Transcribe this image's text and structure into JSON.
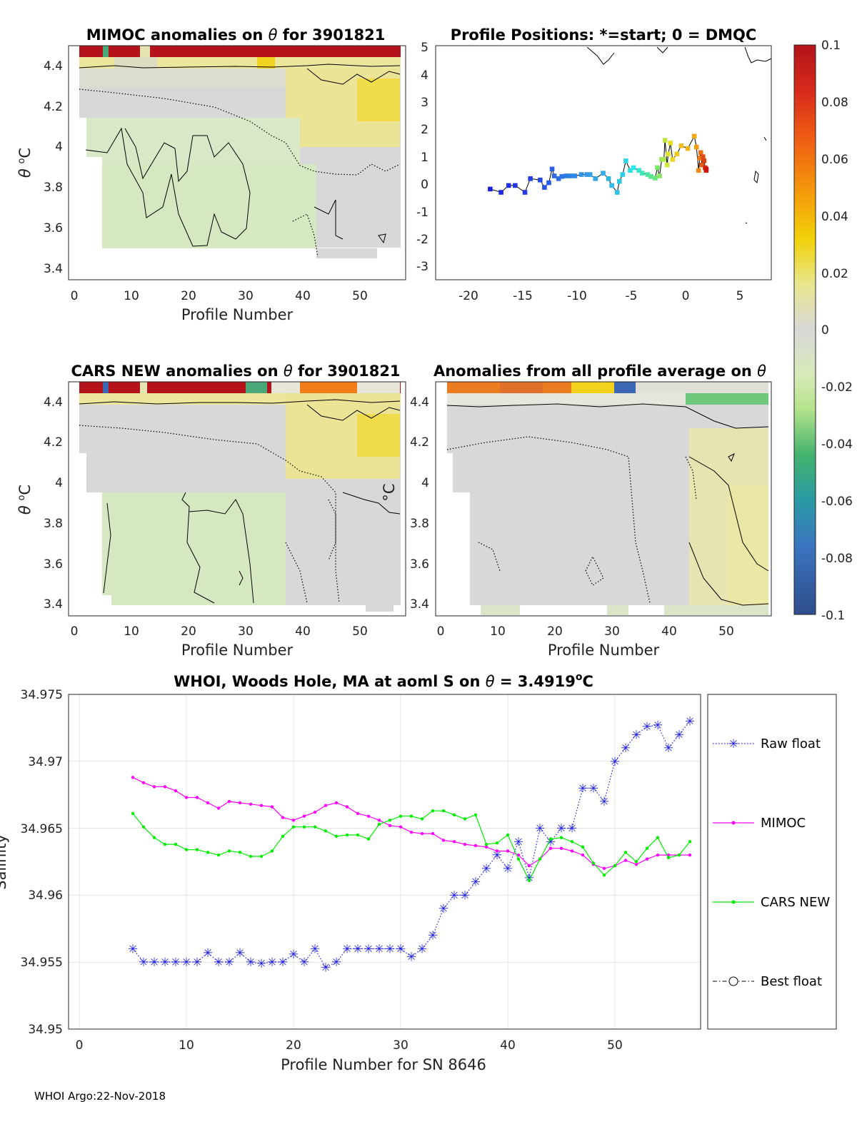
{
  "footer": "WHOI Argo:22-Nov-2018",
  "colorbar": {
    "ticks": [
      "0.1",
      "0.08",
      "0.06",
      "0.04",
      "0.02",
      "0",
      "-0.02",
      "-0.04",
      "-0.06",
      "-0.08",
      "-0.1"
    ],
    "range": [
      -0.1,
      0.1
    ]
  },
  "chart_data": [
    {
      "type": "heatmap",
      "title_parts": [
        "MIMOC anomalies on ",
        "θ",
        "  for 3901821"
      ],
      "xlabel": "Profile Number",
      "ylabel_parts": [
        "θ",
        " ",
        "o",
        "C"
      ],
      "xticks": [
        "0",
        "10",
        "20",
        "30",
        "40",
        "50"
      ],
      "yticks": [
        "3.4",
        "3.6",
        "3.8",
        "4",
        "4.2",
        "4.4"
      ],
      "xlim": [
        -1,
        58
      ],
      "ylim": [
        3.35,
        4.48
      ]
    },
    {
      "type": "scatter",
      "title": "Profile Positions: *=start; 0 = DMQC",
      "xticks": [
        "-20",
        "-15",
        "-10",
        "-5",
        "0",
        "5"
      ],
      "yticks": [
        "5",
        "4",
        "3",
        "2",
        "1",
        "0",
        "-1",
        "-2",
        "-3"
      ],
      "xlim": [
        -23,
        8
      ],
      "ylim": [
        -3.4,
        5.1
      ],
      "track_x": [
        -18,
        -17,
        -16.3,
        -15.7,
        -14.8,
        -14.3,
        -13.4,
        -13,
        -12.6,
        -12.3,
        -12.1,
        -11.7,
        -11.4,
        -11,
        -10.6,
        -10.2,
        -9.6,
        -9.1,
        -8.8,
        -8.3,
        -7.6,
        -7.1,
        -6.8,
        -6.3,
        -6.1,
        -5.8,
        -5.5,
        -5.1,
        -4.8,
        -4.3,
        -4,
        -3.5,
        -3.2,
        -2.8,
        -2.6,
        -2.4,
        -2.2,
        -2,
        -1.9,
        -1.7,
        -1.6,
        -1.4,
        -1.2,
        -0.8,
        -0.4,
        0.2,
        0.8,
        1.0,
        1.2,
        1.3,
        1.4,
        1.5,
        1.6,
        1.7,
        1.8,
        1.9,
        1.9
      ],
      "track_y": [
        -0.18,
        -0.3,
        -0.05,
        -0.05,
        -0.3,
        0.2,
        0.15,
        -0.12,
        0.05,
        0.55,
        0.3,
        0.2,
        0.28,
        0.3,
        0.3,
        0.3,
        0.35,
        0.35,
        0.35,
        0.2,
        0.4,
        0.2,
        -0.05,
        -0.3,
        0.1,
        0.35,
        0.85,
        0.5,
        0.6,
        0.5,
        0.4,
        0.35,
        0.28,
        0.22,
        0.6,
        0.3,
        0.9,
        0.9,
        1.6,
        0.7,
        1.1,
        1.5,
        0.9,
        1.1,
        1.4,
        1.3,
        1.75,
        1.35,
        0.5,
        0.95,
        1.15,
        0.7,
        1.0,
        0.85,
        0.6,
        0.5,
        0.55
      ]
    },
    {
      "type": "heatmap",
      "title_parts": [
        "CARS NEW anomalies on ",
        "θ",
        " for 3901821"
      ],
      "xlabel": "Profile Number",
      "ylabel_parts": [
        "θ",
        " ",
        "o",
        "C"
      ],
      "xticks": [
        "0",
        "10",
        "20",
        "30",
        "40",
        "50"
      ],
      "yticks": [
        "3.4",
        "3.6",
        "3.8",
        "4",
        "4.2",
        "4.4"
      ],
      "xlim": [
        -1,
        58
      ],
      "ylim": [
        3.35,
        4.48
      ]
    },
    {
      "type": "heatmap",
      "title_parts": [
        "Anomalies from all profile average on ",
        "θ"
      ],
      "xlabel": "Profile Number",
      "ylabel": "°C",
      "xticks": [
        "0",
        "10",
        "20",
        "30",
        "40",
        "50"
      ],
      "yticks": [
        "3.4",
        "3.6",
        "3.8",
        "4",
        "4.2",
        "4.4"
      ],
      "xlim": [
        -1,
        58
      ],
      "ylim": [
        3.35,
        4.48
      ]
    },
    {
      "type": "line",
      "title_parts": [
        "WHOI, Woods Hole, MA at aoml S on ",
        "θ",
        " = 3.4919",
        "o",
        "C"
      ],
      "xlabel": "Profile Number for SN 8646",
      "ylabel": "Salinity",
      "xticks": [
        "0",
        "10",
        "20",
        "30",
        "40",
        "50"
      ],
      "yticks": [
        "34.975",
        "34.97",
        "34.965",
        "34.96",
        "34.955",
        "34.95"
      ],
      "xlim": [
        -1,
        58
      ],
      "ylim": [
        34.95,
        34.975
      ],
      "x": [
        5,
        6,
        7,
        8,
        9,
        10,
        11,
        12,
        13,
        14,
        15,
        16,
        17,
        18,
        19,
        20,
        21,
        22,
        23,
        24,
        25,
        26,
        27,
        28,
        29,
        30,
        31,
        32,
        33,
        34,
        35,
        36,
        37,
        38,
        39,
        40,
        41,
        42,
        43,
        44,
        45,
        46,
        47,
        48,
        49,
        50,
        51,
        52,
        53,
        54,
        55,
        56,
        57
      ],
      "series": [
        {
          "name": "Raw float",
          "color": "#1f1fdf",
          "values": [
            34.956,
            34.955,
            34.955,
            34.955,
            34.955,
            34.955,
            34.955,
            34.9557,
            34.955,
            34.955,
            34.9557,
            34.955,
            34.9549,
            34.955,
            34.955,
            34.9556,
            34.955,
            34.956,
            34.9546,
            34.955,
            34.956,
            34.956,
            34.956,
            34.956,
            34.956,
            34.956,
            34.9554,
            34.956,
            34.957,
            34.959,
            34.96,
            34.96,
            34.961,
            34.962,
            34.963,
            34.962,
            34.964,
            34.9613,
            34.965,
            34.964,
            34.965,
            34.965,
            34.968,
            34.968,
            34.967,
            34.97,
            34.971,
            34.972,
            34.9726,
            34.9727,
            34.971,
            34.972,
            34.973
          ]
        },
        {
          "name": "MIMOC",
          "color": "#ff00ff",
          "values": [
            34.9688,
            34.9684,
            34.9681,
            34.9681,
            34.9678,
            34.9673,
            34.9673,
            34.9669,
            34.9665,
            34.967,
            34.9669,
            34.9668,
            34.9667,
            34.9666,
            34.9658,
            34.9656,
            34.9659,
            34.9662,
            34.9667,
            34.9669,
            34.9666,
            34.9661,
            34.9659,
            34.9656,
            34.9652,
            34.9651,
            34.9647,
            34.9646,
            34.9646,
            34.9641,
            34.964,
            34.9638,
            34.9637,
            34.9636,
            34.9633,
            34.9633,
            34.963,
            34.9622,
            34.9627,
            34.9635,
            34.9635,
            34.9633,
            34.963,
            34.9623,
            34.962,
            34.9622,
            34.9626,
            34.9623,
            34.9627,
            34.963,
            34.963,
            34.963,
            34.963
          ]
        },
        {
          "name": "CARS NEW",
          "color": "#00ee00",
          "values": [
            34.9661,
            34.9651,
            34.9643,
            34.9638,
            34.9638,
            34.9634,
            34.9634,
            34.9632,
            34.963,
            34.9633,
            34.9632,
            34.9629,
            34.9629,
            34.9633,
            34.9644,
            34.9651,
            34.9651,
            34.9651,
            34.9648,
            34.9644,
            34.9645,
            34.9645,
            34.9642,
            34.9653,
            34.9656,
            34.9659,
            34.9659,
            34.9657,
            34.9663,
            34.9663,
            34.966,
            34.9657,
            34.966,
            34.9638,
            34.9639,
            34.9645,
            34.9627,
            34.9611,
            34.9627,
            34.9642,
            34.9643,
            34.964,
            34.9636,
            34.9624,
            34.9615,
            34.9622,
            34.9632,
            34.9625,
            34.9635,
            34.9643,
            34.9628,
            34.963,
            34.964
          ]
        }
      ],
      "legend": [
        "Raw float",
        "MIMOC",
        "CARS NEW",
        "Best float"
      ],
      "grid": true
    }
  ]
}
